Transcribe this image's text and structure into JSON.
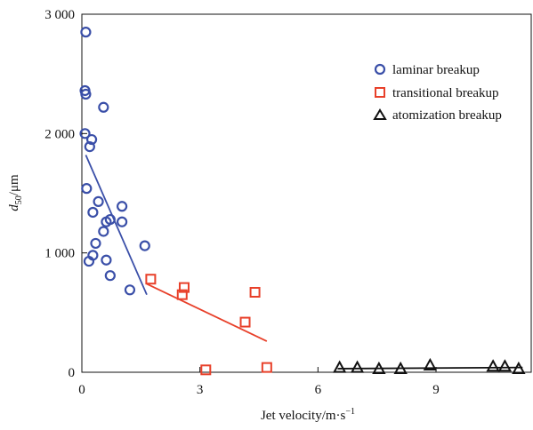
{
  "chart_data": {
    "type": "scatter",
    "title": "",
    "xlabel": "Jet velocity/m·s",
    "xlabel_sup": "−1",
    "ylabel": "d",
    "ylabel_sub": "50",
    "ylabel_unit": "/μm",
    "xlim": [
      0,
      11.4
    ],
    "ylim": [
      0,
      3000
    ],
    "xticks": [
      0,
      3,
      6,
      9
    ],
    "xtick_labels": [
      "0",
      "3",
      "6",
      "9"
    ],
    "yticks": [
      0,
      1000,
      2000,
      3000
    ],
    "ytick_labels": [
      "0",
      "1 000",
      "2 000",
      "3 000"
    ],
    "grid": false,
    "legend_position": "top-right",
    "series": [
      {
        "name": "laminar breakup",
        "marker": "circle",
        "color": "#3a4fa8",
        "points": [
          [
            0.1,
            2850
          ],
          [
            0.08,
            2360
          ],
          [
            0.1,
            2330
          ],
          [
            0.55,
            2220
          ],
          [
            0.08,
            2000
          ],
          [
            0.25,
            1950
          ],
          [
            0.2,
            1890
          ],
          [
            0.12,
            1540
          ],
          [
            0.42,
            1430
          ],
          [
            0.28,
            1340
          ],
          [
            1.02,
            1390
          ],
          [
            0.72,
            1280
          ],
          [
            0.62,
            1260
          ],
          [
            1.02,
            1260
          ],
          [
            0.55,
            1180
          ],
          [
            0.35,
            1080
          ],
          [
            1.6,
            1060
          ],
          [
            0.28,
            980
          ],
          [
            0.18,
            930
          ],
          [
            0.62,
            940
          ],
          [
            0.72,
            810
          ],
          [
            1.22,
            690
          ]
        ],
        "trendline": {
          "x": [
            0.1,
            1.65
          ],
          "y": [
            1820,
            650
          ]
        }
      },
      {
        "name": "transitional breakup",
        "marker": "square",
        "color": "#e8402a",
        "points": [
          [
            1.75,
            780
          ],
          [
            2.6,
            710
          ],
          [
            2.55,
            650
          ],
          [
            4.4,
            670
          ],
          [
            4.15,
            420
          ],
          [
            3.15,
            20
          ],
          [
            4.7,
            40
          ]
        ],
        "trendline": {
          "x": [
            1.65,
            4.7
          ],
          "y": [
            740,
            260
          ]
        }
      },
      {
        "name": "atomization breakup",
        "marker": "triangle",
        "color": "#111111",
        "points": [
          [
            6.55,
            40
          ],
          [
            7.0,
            40
          ],
          [
            7.55,
            30
          ],
          [
            8.1,
            30
          ],
          [
            8.85,
            60
          ],
          [
            10.45,
            50
          ],
          [
            10.75,
            50
          ],
          [
            11.1,
            30
          ]
        ],
        "trendline": {
          "x": [
            6.5,
            11.2
          ],
          "y": [
            30,
            40
          ]
        }
      }
    ]
  }
}
